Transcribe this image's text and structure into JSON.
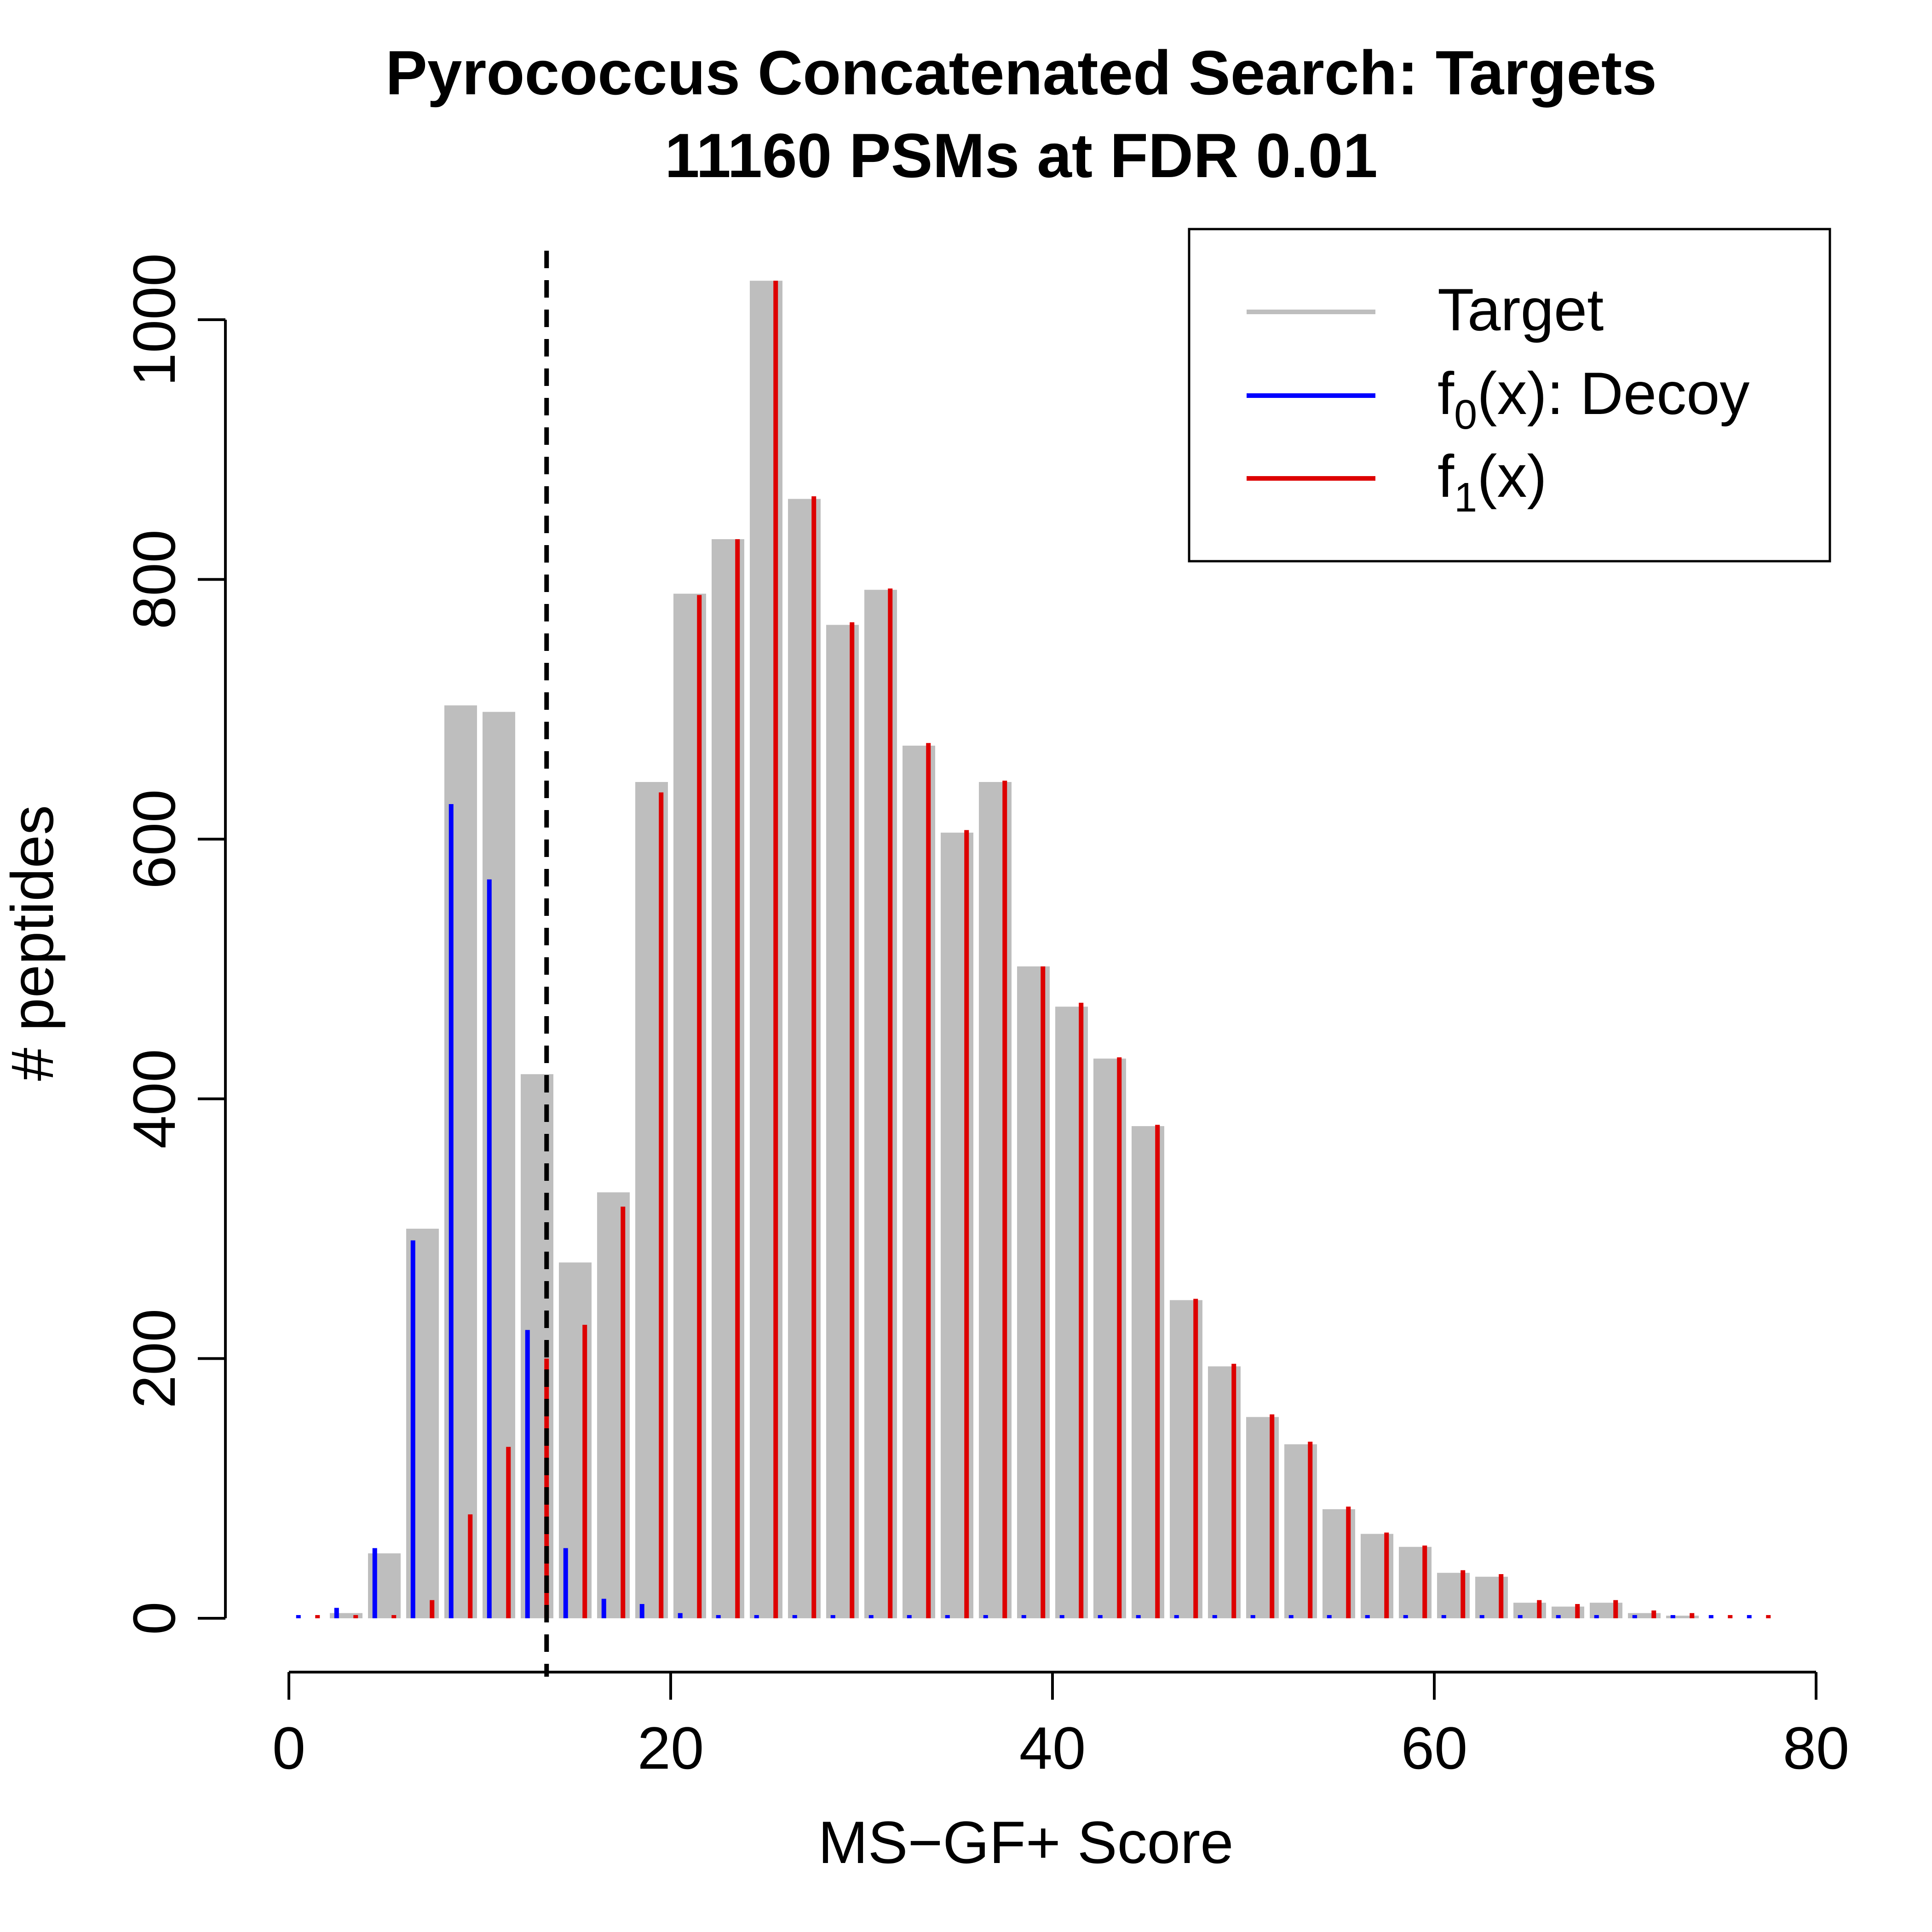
{
  "chart_data": {
    "type": "bar",
    "title": "Pyrococcus Concatenated Search: Targets",
    "subtitle": "11160 PSMs at FDR 0.01",
    "xlabel": "MS−GF+ Score",
    "ylabel": "# peptides",
    "xlim": [
      0,
      80
    ],
    "ylim": [
      0,
      1050
    ],
    "xticks": [
      0,
      20,
      40,
      60,
      80
    ],
    "yticks": [
      0,
      200,
      400,
      600,
      800,
      1000
    ],
    "xtick_labels": [
      "0",
      "20",
      "40",
      "60",
      "80"
    ],
    "ytick_labels": [
      "0",
      "200",
      "400",
      "600",
      "800",
      "1000"
    ],
    "threshold_score": 13.5,
    "bin_width": 2,
    "target": {
      "name": "Target",
      "color": "#bebebe",
      "bin_starts": [
        2,
        4,
        6,
        8,
        10,
        12,
        14,
        16,
        18,
        20,
        22,
        24,
        26,
        28,
        30,
        32,
        34,
        36,
        38,
        40,
        42,
        44,
        46,
        48,
        50,
        52,
        54,
        56,
        58,
        60,
        62,
        64,
        66,
        68,
        70,
        72
      ],
      "values": [
        4,
        50,
        300,
        703,
        698,
        419,
        274,
        328,
        644,
        789,
        831,
        1030,
        862,
        765,
        792,
        672,
        605,
        644,
        502,
        471,
        431,
        379,
        245,
        194,
        155,
        134,
        84,
        65,
        55,
        35,
        32,
        12,
        9,
        12,
        4,
        2
      ]
    },
    "decoy": {
      "name": "f0(x): Decoy",
      "label_main": "f",
      "label_sub": "0",
      "label_rest": "(x): Decoy",
      "color": "#0000ff",
      "x": [
        0.5,
        2.5,
        4.5,
        6.5,
        8.5,
        10.5,
        12.5,
        14.5,
        16.5,
        18.5,
        20.5,
        22.5,
        24.5,
        26.5,
        28.5,
        30.5,
        32.5,
        34.5,
        36.5,
        38.5,
        40.5,
        42.5,
        44.5,
        46.5,
        48.5,
        50.5,
        52.5,
        54.5,
        56.5,
        58.5,
        60.5,
        62.5,
        64.5,
        66.5,
        68.5,
        70.5,
        72.5,
        74.5,
        76.5
      ],
      "values": [
        1,
        8,
        54,
        291,
        627,
        569,
        222,
        54,
        15,
        11,
        4,
        2,
        1,
        1,
        1,
        1,
        1,
        1,
        1,
        1,
        1,
        1,
        1,
        1,
        1,
        1,
        1,
        1,
        1,
        1,
        1,
        1,
        1,
        1,
        1,
        1,
        1,
        1,
        1
      ]
    },
    "f1": {
      "name": "f1(x)",
      "label_main": "f",
      "label_sub": "1",
      "label_rest": "(x)",
      "color": "#dd0000",
      "x": [
        1.5,
        3.5,
        5.5,
        7.5,
        9.5,
        11.5,
        13.5,
        15.5,
        17.5,
        19.5,
        21.5,
        23.5,
        25.5,
        27.5,
        29.5,
        31.5,
        33.5,
        35.5,
        37.5,
        39.5,
        41.5,
        43.5,
        45.5,
        47.5,
        49.5,
        51.5,
        53.5,
        55.5,
        57.5,
        59.5,
        61.5,
        63.5,
        65.5,
        67.5,
        69.5,
        71.5,
        73.5,
        75.5,
        77.5
      ],
      "values": [
        1,
        1,
        1,
        14,
        80,
        132,
        200,
        226,
        317,
        636,
        788,
        831,
        1030,
        864,
        767,
        793,
        674,
        607,
        645,
        502,
        474,
        432,
        380,
        246,
        196,
        157,
        136,
        86,
        66,
        56,
        37,
        34,
        14,
        11,
        14,
        6,
        4,
        2,
        2
      ]
    },
    "legend": {
      "position": "top-right"
    }
  }
}
